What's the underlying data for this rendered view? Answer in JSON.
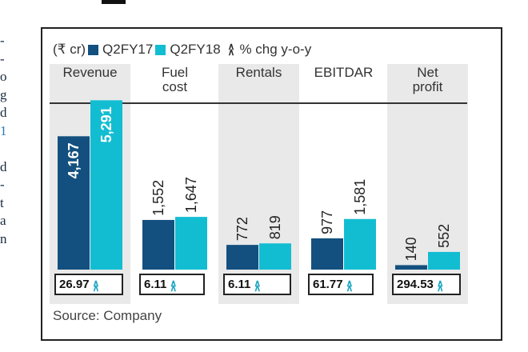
{
  "edge_text": [
    "-",
    "-",
    "o",
    "g",
    "d",
    "1",
    "",
    "d",
    "-",
    "t",
    "a",
    "n"
  ],
  "legend": {
    "unit": "(₹ cr)",
    "s1": "Q2FY17",
    "s2": "Q2FY18",
    "chg_icon": "double-chevron-up-icon",
    "chg_label": "% chg y-o-y"
  },
  "colors": {
    "q2fy17": "#13507f",
    "q2fy18": "#12bdd2",
    "column_bg": "#e9e9e9"
  },
  "chart_data": {
    "type": "bar",
    "categories": [
      "Revenue",
      "Fuel cost",
      "Rentals",
      "EBITDAR",
      "Net profit"
    ],
    "category_lines": [
      [
        "Revenue"
      ],
      [
        "Fuel",
        "cost"
      ],
      [
        "Rentals"
      ],
      [
        "EBITDAR"
      ],
      [
        "Net",
        "profit"
      ]
    ],
    "series": [
      {
        "name": "Q2FY17",
        "values": [
          4167,
          1552,
          772,
          977,
          140
        ],
        "labels": [
          "4,167",
          "1,552",
          "772",
          "977",
          "140"
        ]
      },
      {
        "name": "Q2FY18",
        "values": [
          5291,
          1647,
          819,
          1581,
          552
        ],
        "labels": [
          "5,291",
          "1,647",
          "819",
          "1,581",
          "552"
        ]
      }
    ],
    "pct_change": [
      "26.97",
      "6.11",
      "6.11",
      "61.77",
      "294.53"
    ],
    "grid": false,
    "legend_position": "top"
  },
  "source": "Source: Company"
}
